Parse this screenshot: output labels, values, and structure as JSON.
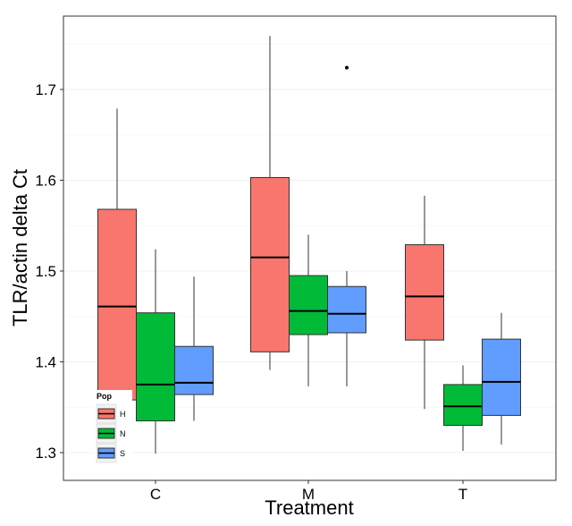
{
  "chart_data": {
    "type": "box",
    "xlabel": "Treatment",
    "ylabel": "TLR/actin delta Ct",
    "categories": [
      "C",
      "M",
      "T"
    ],
    "ylim": [
      1.27,
      1.79
    ],
    "yticks": [
      "1.3",
      "1.4",
      "1.5",
      "1.6",
      "1.7"
    ],
    "grid": "horizontal, light",
    "legend": {
      "title": "Pop",
      "position": "bottom-left",
      "entries": [
        "H",
        "N",
        "S"
      ]
    },
    "colors": {
      "H": "#F8766D",
      "N": "#00BA38",
      "S": "#619CFF"
    },
    "series": [
      {
        "name": "H",
        "boxes": [
          {
            "category": "C",
            "min": 1.358,
            "q1": 1.358,
            "median": 1.461,
            "q3": 1.568,
            "max": 1.679
          },
          {
            "category": "M",
            "min": 1.391,
            "q1": 1.411,
            "median": 1.515,
            "q3": 1.603,
            "max": 1.759
          },
          {
            "category": "T",
            "min": 1.348,
            "q1": 1.424,
            "median": 1.472,
            "q3": 1.529,
            "max": 1.583
          }
        ]
      },
      {
        "name": "N",
        "boxes": [
          {
            "category": "C",
            "min": 1.299,
            "q1": 1.335,
            "median": 1.375,
            "q3": 1.454,
            "max": 1.524
          },
          {
            "category": "M",
            "min": 1.373,
            "q1": 1.43,
            "median": 1.456,
            "q3": 1.495,
            "max": 1.54
          },
          {
            "category": "T",
            "min": 1.302,
            "q1": 1.33,
            "median": 1.351,
            "q3": 1.375,
            "max": 1.396
          }
        ]
      },
      {
        "name": "S",
        "boxes": [
          {
            "category": "C",
            "min": 1.335,
            "q1": 1.364,
            "median": 1.377,
            "q3": 1.417,
            "max": 1.494
          },
          {
            "category": "M",
            "min": 1.373,
            "q1": 1.432,
            "median": 1.453,
            "q3": 1.483,
            "max": 1.5
          },
          {
            "category": "T",
            "min": 1.309,
            "q1": 1.341,
            "median": 1.378,
            "q3": 1.425,
            "max": 1.454
          }
        ]
      }
    ],
    "outliers": [
      {
        "category": "M",
        "series": "S",
        "y": 1.724
      }
    ]
  }
}
